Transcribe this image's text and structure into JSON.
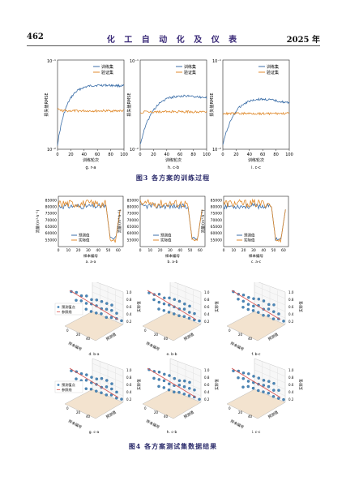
{
  "header": {
    "page_number": "462",
    "journal_title": "化 工 自 动 化 及 仪 表",
    "year": "2025 年"
  },
  "figure3": {
    "caption": "图3  各方案的训练过程",
    "chart_data": [
      {
        "type": "line",
        "sublabel": "g. r-a",
        "xlabel": "训练轮次",
        "ylabel": "损失值RMSE",
        "xlim": [
          0,
          100
        ],
        "xticks": [
          "0",
          "20",
          "40",
          "60",
          "80",
          "100"
        ],
        "ytick_top": "10⁻¹",
        "ytick_bottom": "10⁻²",
        "yscale": "log",
        "series": [
          {
            "name": "训练集",
            "color": "#3b6ea8",
            "start": 0.95,
            "plateau": 0.25,
            "decay": 14,
            "drift": 0.04
          },
          {
            "name": "验证集",
            "color": "#e08a2c",
            "start": 0.55,
            "plateau": 0.57,
            "decay": 3,
            "drift": 0.0
          }
        ]
      },
      {
        "type": "line",
        "sublabel": "h. c-b",
        "xlabel": "训练轮次",
        "ylabel": "损失值RMSE",
        "xlim": [
          0,
          100
        ],
        "xticks": [
          "0",
          "20",
          "40",
          "60",
          "80",
          "100"
        ],
        "ytick_top": "10⁻¹",
        "ytick_bottom": "10⁻²",
        "yscale": "log",
        "series": [
          {
            "name": "训练集",
            "color": "#3b6ea8",
            "start": 0.95,
            "plateau": 0.3,
            "decay": 20,
            "drift": 0.12
          },
          {
            "name": "验证集",
            "color": "#e08a2c",
            "start": 0.6,
            "plateau": 0.58,
            "decay": 3,
            "drift": 0.0
          }
        ]
      },
      {
        "type": "line",
        "sublabel": "i. c-c",
        "xlabel": "训练轮次",
        "ylabel": "损失值RMSE",
        "xlim": [
          0,
          100
        ],
        "xticks": [
          "0",
          "20",
          "40",
          "60",
          "80",
          "100"
        ],
        "ytick_top": "10⁻¹",
        "ytick_bottom": "10⁻²",
        "yscale": "log",
        "series": [
          {
            "name": "训练集",
            "color": "#3b6ea8",
            "start": 0.95,
            "plateau": 0.3,
            "decay": 20,
            "drift": 0.18
          },
          {
            "name": "验证集",
            "color": "#e08a2c",
            "start": 0.6,
            "plateau": 0.6,
            "decay": 3,
            "drift": 0.0
          }
        ]
      }
    ]
  },
  "figure4": {
    "caption": "图4  各方案测试集数据结果",
    "line_charts": [
      {
        "type": "line",
        "sublabel": "a. a-a",
        "xlabel": "样本编号",
        "ylabel": "流量/(m³·h⁻¹)",
        "xlim": [
          0,
          65
        ],
        "ylim": [
          50000,
          88000
        ],
        "xticks": [
          "0",
          "10",
          "20",
          "30",
          "40",
          "50",
          "60"
        ],
        "yticks": [
          "55000",
          "60000",
          "65000",
          "70000",
          "75000",
          "80000",
          "85000"
        ],
        "legend": [
          "预测值",
          "实际值"
        ],
        "legend_colors": [
          "#3b6ea8",
          "#e08a2c"
        ]
      },
      {
        "type": "line",
        "sublabel": "b. a-b",
        "xlabel": "样本编号",
        "ylabel": "流量/(m³·h⁻¹)",
        "xlim": [
          0,
          65
        ],
        "ylim": [
          50000,
          88000
        ],
        "xticks": [
          "0",
          "10",
          "20",
          "30",
          "40",
          "50",
          "60"
        ],
        "yticks": [
          "55000",
          "60000",
          "65000",
          "70000",
          "75000",
          "80000",
          "85000"
        ],
        "legend": [
          "预测值",
          "实际值"
        ],
        "legend_colors": [
          "#3b6ea8",
          "#e08a2c"
        ]
      },
      {
        "type": "line",
        "sublabel": "c. a-c",
        "xlabel": "样本编号",
        "ylabel": "流量/(m³·h⁻¹)",
        "xlim": [
          0,
          65
        ],
        "ylim": [
          50000,
          88000
        ],
        "xticks": [
          "0",
          "10",
          "20",
          "30",
          "40",
          "50",
          "60"
        ],
        "yticks": [
          "55000",
          "60000",
          "65000",
          "70000",
          "75000",
          "80000",
          "85000"
        ],
        "legend": [
          "预测值",
          "实际值"
        ],
        "legend_colors": [
          "#3b6ea8",
          "#e08a2c"
        ]
      }
    ],
    "scatter3d": [
      {
        "type": "scatter",
        "sublabel": "d. b-a",
        "legend": [
          "预测值点",
          "参照线"
        ]
      },
      {
        "type": "scatter",
        "sublabel": "e. b-b",
        "legend": []
      },
      {
        "type": "scatter",
        "sublabel": "f. b-c",
        "legend": []
      },
      {
        "type": "scatter",
        "sublabel": "g. c-a",
        "legend": [
          "预测值点",
          "参照线"
        ]
      },
      {
        "type": "scatter",
        "sublabel": "h. c-b",
        "legend": []
      },
      {
        "type": "scatter",
        "sublabel": "i. c-c",
        "legend": []
      }
    ],
    "scatter_axes": {
      "xlabel": "样本编号",
      "ylabel": "预测值",
      "zlabel": "实际值",
      "zticks": [
        "0.2",
        "0.4",
        "0.6",
        "0.8",
        "1.0"
      ],
      "xticks": [
        "0",
        "20",
        "40"
      ]
    }
  }
}
